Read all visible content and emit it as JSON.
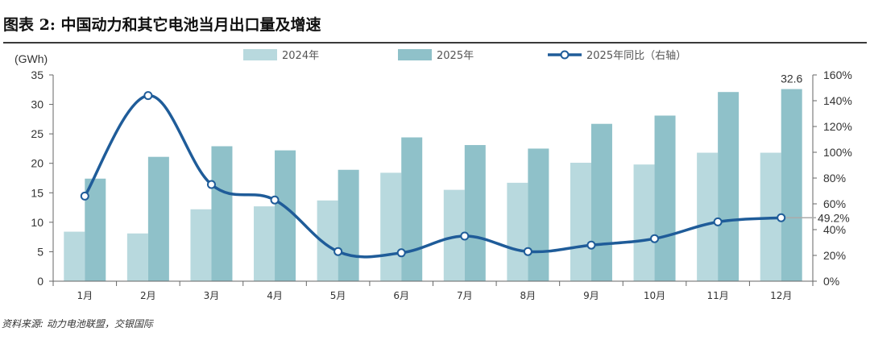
{
  "title": "图表 2: 中国动力和其它电池当月出口量及增速",
  "source": "资料来源: 动力电池联盟，交银国际",
  "chart_data": {
    "type": "bar",
    "categories": [
      "1月",
      "2月",
      "3月",
      "4月",
      "5月",
      "6月",
      "7月",
      "8月",
      "9月",
      "10月",
      "11月",
      "12月"
    ],
    "series": [
      {
        "name": "2024年",
        "type": "bar",
        "color": "#b8d9de",
        "values": [
          8.4,
          8.1,
          12.2,
          12.7,
          13.7,
          18.4,
          15.5,
          16.7,
          20.1,
          19.8,
          21.8,
          21.8
        ]
      },
      {
        "name": "2025年",
        "type": "bar",
        "color": "#8fc1c9",
        "values": [
          17.4,
          21.1,
          22.9,
          22.2,
          18.9,
          24.4,
          23.1,
          22.5,
          26.7,
          28.1,
          32.1,
          32.6
        ]
      },
      {
        "name": "2025年同比（右轴）",
        "type": "line",
        "axis": "right",
        "color": "#1f5c99",
        "values": [
          66,
          144,
          75,
          63,
          23,
          22,
          35,
          23,
          28,
          33,
          46,
          49.2
        ]
      }
    ],
    "ylabel": "(GWh)",
    "ylim": [
      0,
      35
    ],
    "yticks": [
      "0",
      "5",
      "10",
      "15",
      "20",
      "25",
      "30",
      "35"
    ],
    "y2lim": [
      0,
      160
    ],
    "y2ticks": [
      "0%",
      "20%",
      "40%",
      "60%",
      "80%",
      "100%",
      "120%",
      "140%",
      "160%"
    ],
    "annotations": {
      "last_bar": "32.6",
      "last_line": "49.2%"
    }
  }
}
